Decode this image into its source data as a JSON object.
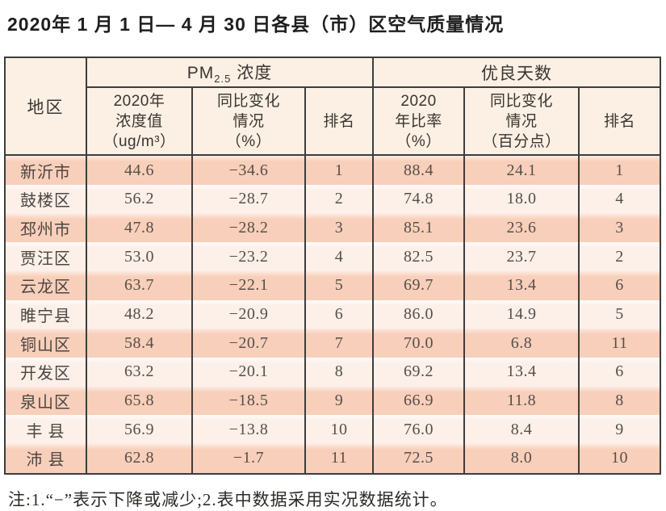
{
  "page": {
    "title": "2020年 1 月 1 日— 4 月 30 日各县（市）区空气质量情况",
    "note": "注:1.“−”表示下降或减少;2.表中数据采用实况数据统计。"
  },
  "colors": {
    "row_dark": "#f8cfba",
    "row_light": "#fcf0e9",
    "header_bg": "#fcf0e4",
    "border": "#3d3d3d"
  },
  "table": {
    "col_region": "地区",
    "group_pm25": {
      "pre": "PM",
      "sub": "2.5",
      "post": " 浓度"
    },
    "group_good_days": "优良天数",
    "sub_headers": {
      "pm_value": "2020年\n浓度值\n（ug/m³）",
      "pm_change": "同比变化\n情况\n（%）",
      "pm_rank": "排名",
      "gd_rate": "2020\n年比率\n（%）",
      "gd_change": "同比变化\n情况\n（百分点）",
      "gd_rank": "排名"
    },
    "rows": [
      {
        "region": "新沂市",
        "pm_value": "44.6",
        "pm_change": "−34.6",
        "pm_rank": "1",
        "gd_rate": "88.4",
        "gd_change": "24.1",
        "gd_rank": "1"
      },
      {
        "region": "鼓楼区",
        "pm_value": "56.2",
        "pm_change": "−28.7",
        "pm_rank": "2",
        "gd_rate": "74.8",
        "gd_change": "18.0",
        "gd_rank": "4"
      },
      {
        "region": "邳州市",
        "pm_value": "47.8",
        "pm_change": "−28.2",
        "pm_rank": "3",
        "gd_rate": "85.1",
        "gd_change": "23.6",
        "gd_rank": "3"
      },
      {
        "region": "贾汪区",
        "pm_value": "53.0",
        "pm_change": "−23.2",
        "pm_rank": "4",
        "gd_rate": "82.5",
        "gd_change": "23.7",
        "gd_rank": "2"
      },
      {
        "region": "云龙区",
        "pm_value": "63.7",
        "pm_change": "−22.1",
        "pm_rank": "5",
        "gd_rate": "69.7",
        "gd_change": "13.4",
        "gd_rank": "6"
      },
      {
        "region": "睢宁县",
        "pm_value": "48.2",
        "pm_change": "−20.9",
        "pm_rank": "6",
        "gd_rate": "86.0",
        "gd_change": "14.9",
        "gd_rank": "5"
      },
      {
        "region": "铜山区",
        "pm_value": "58.4",
        "pm_change": "−20.7",
        "pm_rank": "7",
        "gd_rate": "70.0",
        "gd_change": "6.8",
        "gd_rank": "11"
      },
      {
        "region": "开发区",
        "pm_value": "63.2",
        "pm_change": "−20.1",
        "pm_rank": "8",
        "gd_rate": "69.2",
        "gd_change": "13.4",
        "gd_rank": "6"
      },
      {
        "region": "泉山区",
        "pm_value": "65.8",
        "pm_change": "−18.5",
        "pm_rank": "9",
        "gd_rate": "66.9",
        "gd_change": "11.8",
        "gd_rank": "8"
      },
      {
        "region": "丰 县",
        "pm_value": "56.9",
        "pm_change": "−13.8",
        "pm_rank": "10",
        "gd_rate": "76.0",
        "gd_change": "8.4",
        "gd_rank": "9"
      },
      {
        "region": "沛 县",
        "pm_value": "62.8",
        "pm_change": "−1.7",
        "pm_rank": "11",
        "gd_rate": "72.5",
        "gd_change": "8.0",
        "gd_rank": "10"
      }
    ]
  }
}
